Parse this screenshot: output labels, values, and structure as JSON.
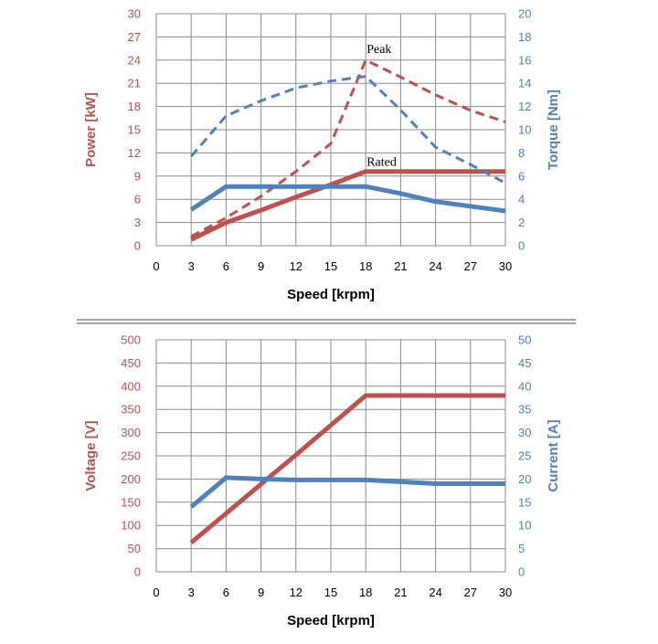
{
  "colors": {
    "red": "#c0504d",
    "blue": "#4f81bd",
    "grid": "#8c8c8c",
    "text": "#000000"
  },
  "chart_data": [
    {
      "type": "line",
      "xlabel": "Speed [krpm]",
      "ylabel_left": "Power [kW]",
      "ylabel_right": "Torque [Nm]",
      "xlim": [
        0,
        30
      ],
      "xticks": [
        0,
        3,
        6,
        9,
        12,
        15,
        18,
        21,
        24,
        27,
        30
      ],
      "ylim_left": [
        0,
        30
      ],
      "yticks_left": [
        0,
        3,
        6,
        9,
        12,
        15,
        18,
        21,
        24,
        27,
        30
      ],
      "ylim_right": [
        0,
        20
      ],
      "yticks_right": [
        0,
        2,
        4,
        6,
        8,
        10,
        12,
        14,
        16,
        18,
        20
      ],
      "grid": true,
      "annotations": [
        {
          "text": "Peak",
          "x": 18,
          "y": 24,
          "axis": "left"
        },
        {
          "text": "Rated",
          "x": 18,
          "y": 9.6,
          "axis": "left"
        }
      ],
      "series": [
        {
          "axis": "left",
          "style": "dashed",
          "color": "red",
          "x": [
            3,
            6,
            9,
            12,
            15,
            18,
            21,
            24,
            27,
            30
          ],
          "y": [
            1.2,
            3.6,
            6.4,
            9.6,
            13.2,
            24,
            21.8,
            19.5,
            17.5,
            16
          ]
        },
        {
          "axis": "left",
          "style": "solid",
          "color": "red",
          "x": [
            3,
            6,
            9,
            12,
            15,
            18,
            21,
            24,
            27,
            30
          ],
          "y": [
            0.8,
            3,
            4.6,
            6.3,
            7.9,
            9.6,
            9.6,
            9.6,
            9.6,
            9.6
          ]
        },
        {
          "axis": "right",
          "style": "dashed",
          "color": "blue",
          "x": [
            3,
            6,
            9,
            12,
            15,
            18,
            21,
            24,
            27,
            30
          ],
          "y": [
            7.7,
            11.2,
            12.5,
            13.6,
            14.2,
            14.6,
            11.7,
            8.5,
            7,
            5.4
          ]
        },
        {
          "axis": "right",
          "style": "solid",
          "color": "blue",
          "x": [
            3,
            6,
            9,
            12,
            15,
            18,
            21,
            24,
            27,
            30
          ],
          "y": [
            3.1,
            5.1,
            5.1,
            5.1,
            5.1,
            5.1,
            4.5,
            3.8,
            3.4,
            3
          ]
        }
      ]
    },
    {
      "type": "line",
      "xlabel": "Speed [krpm]",
      "ylabel_left": "Voltage [V]",
      "ylabel_right": "Current [A]",
      "xlim": [
        0,
        30
      ],
      "xticks": [
        0,
        3,
        6,
        9,
        12,
        15,
        18,
        21,
        24,
        27,
        30
      ],
      "ylim_left": [
        0,
        500
      ],
      "yticks_left": [
        0,
        50,
        100,
        150,
        200,
        250,
        300,
        350,
        400,
        450,
        500
      ],
      "ylim_right": [
        0,
        50
      ],
      "yticks_right": [
        0,
        5,
        10,
        15,
        20,
        25,
        30,
        35,
        40,
        45,
        50
      ],
      "grid": true,
      "annotations": [],
      "series": [
        {
          "axis": "left",
          "style": "solid",
          "color": "red",
          "x": [
            3,
            6,
            9,
            12,
            15,
            18,
            21,
            24,
            27,
            30
          ],
          "y": [
            63,
            126,
            189,
            252,
            316,
            380,
            380,
            380,
            380,
            380
          ]
        },
        {
          "axis": "right",
          "style": "solid",
          "color": "blue",
          "x": [
            3,
            6,
            9,
            12,
            15,
            18,
            21,
            24,
            27,
            30
          ],
          "y": [
            14,
            20.3,
            20,
            19.8,
            19.8,
            19.8,
            19.4,
            19,
            19,
            19
          ]
        }
      ]
    }
  ]
}
